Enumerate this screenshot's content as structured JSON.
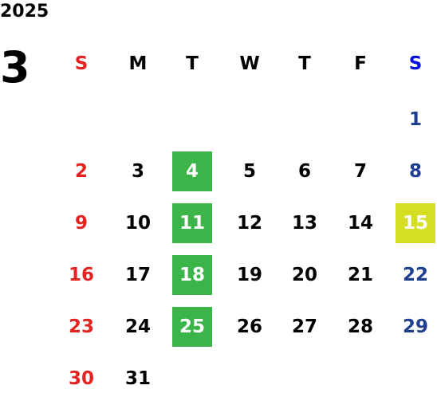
{
  "header": {
    "year": "2025",
    "month": "3"
  },
  "weekdays": [
    "S",
    "M",
    "T",
    "W",
    "T",
    "F",
    "S"
  ],
  "colors": {
    "sunday": "#e32222",
    "saturday": "#1e3f8f",
    "saturday_header": "#0010e0",
    "weekday": "#000000"
  },
  "weeks": [
    [
      null,
      null,
      null,
      null,
      null,
      null,
      {
        "day": "1"
      }
    ],
    [
      {
        "day": "2"
      },
      {
        "day": "3"
      },
      {
        "day": "4",
        "highlight": "#3bb54a"
      },
      {
        "day": "5"
      },
      {
        "day": "6"
      },
      {
        "day": "7"
      },
      {
        "day": "8"
      }
    ],
    [
      {
        "day": "9"
      },
      {
        "day": "10"
      },
      {
        "day": "11",
        "highlight": "#3bb54a"
      },
      {
        "day": "12"
      },
      {
        "day": "13"
      },
      {
        "day": "14"
      },
      {
        "day": "15",
        "highlight": "#d5de22"
      }
    ],
    [
      {
        "day": "16"
      },
      {
        "day": "17"
      },
      {
        "day": "18",
        "highlight": "#3bb54a"
      },
      {
        "day": "19"
      },
      {
        "day": "20"
      },
      {
        "day": "21"
      },
      {
        "day": "22"
      }
    ],
    [
      {
        "day": "23"
      },
      {
        "day": "24"
      },
      {
        "day": "25",
        "highlight": "#3bb54a"
      },
      {
        "day": "26"
      },
      {
        "day": "27"
      },
      {
        "day": "28"
      },
      {
        "day": "29"
      }
    ],
    [
      {
        "day": "30"
      },
      {
        "day": "31"
      },
      null,
      null,
      null,
      null,
      null
    ]
  ]
}
